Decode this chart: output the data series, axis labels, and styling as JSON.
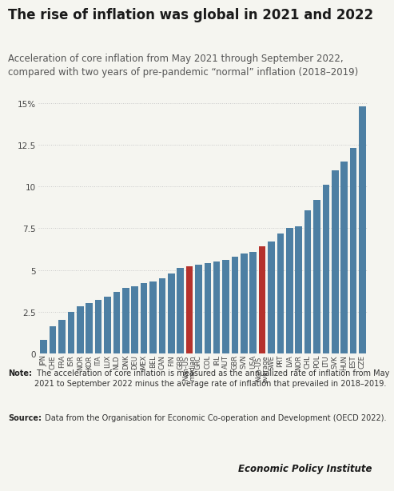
{
  "title": "The rise of inflation was global in 2021 and 2022",
  "subtitle": "Acceleration of core inflation from May 2021 through September 2022,\ncompared with two years of pre-pandemic “normal” inflation (2018–2019)",
  "note_bold": "Note:",
  "note_body": " The acceleration of core inflation is measured as the annualized rate of inflation from May 2021 to September 2022 minus the average rate of inflation that prevailed in 2018–2019.",
  "source_bold": "Source:",
  "source_body": " Data from the Organisation for Economic Co-operation and Development (OECD 2022).",
  "credit": "Economic Policy Institute",
  "labels": [
    "JPN",
    "CHE",
    "FRA",
    "ISR",
    "NOR",
    "KOR",
    "ITA",
    "LUX",
    "NLD",
    "DNK",
    "DEU",
    "MEX",
    "BEL",
    "CAN",
    "FIN",
    "GBR",
    "Non-US\nmedian",
    "GRC",
    "COL",
    "IRL",
    "AUT",
    "GBR",
    "SVN",
    "USA",
    "Non-US\naverage",
    "SWE",
    "PRT",
    "LVA",
    "NOR",
    "CHL",
    "POL",
    "LTU",
    "SVK",
    "HUN",
    "EST",
    "CZE"
  ],
  "values": [
    0.8,
    1.6,
    2.0,
    2.5,
    2.8,
    3.0,
    3.2,
    3.4,
    3.7,
    3.9,
    4.0,
    4.2,
    4.3,
    4.5,
    4.8,
    5.1,
    5.2,
    5.3,
    5.4,
    5.5,
    5.6,
    5.8,
    6.0,
    6.1,
    6.4,
    6.7,
    7.2,
    7.5,
    7.6,
    8.6,
    9.2,
    10.1,
    11.0,
    11.5,
    12.3,
    14.8
  ],
  "colors_blue": "#4d7fa3",
  "colors_red": "#b5312c",
  "red_indices": [
    16,
    24
  ],
  "ylim": [
    0,
    15
  ],
  "yticks": [
    0,
    2.5,
    5,
    7.5,
    10,
    12.5,
    15
  ],
  "ytick_labels": [
    "0",
    "2.5",
    "5",
    "7.5",
    "10",
    "12.5",
    "15%"
  ],
  "background_color": "#f5f5f0",
  "grid_color": "#c8c8c8",
  "title_fontsize": 12,
  "subtitle_fontsize": 8.5,
  "tick_fontsize": 6,
  "ytick_fontsize": 7.5,
  "note_fontsize": 7,
  "credit_fontsize": 8.5
}
